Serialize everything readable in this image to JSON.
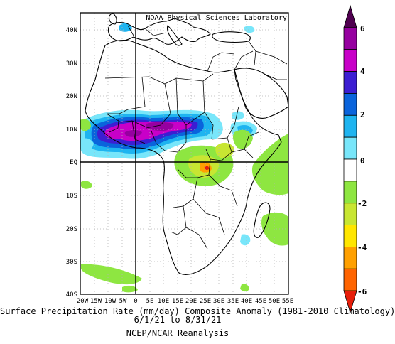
{
  "map": {
    "attribution": "NOAA Physical Sciences Laboratory",
    "lat_labels": [
      "40N",
      "30N",
      "20N",
      "10N",
      "EQ",
      "10S",
      "20S",
      "30S",
      "40S"
    ],
    "lon_labels": [
      "20W",
      "15W",
      "10W",
      "5W",
      "0",
      "5E",
      "10E",
      "15E",
      "20E",
      "25E",
      "30E",
      "35E",
      "40E",
      "45E",
      "50E",
      "55E"
    ],
    "extent": {
      "lon_min": -20,
      "lon_max": 55,
      "lat_min": -40,
      "lat_max": 45
    }
  },
  "colorbar": {
    "tick_labels": [
      "6",
      "4",
      "2",
      "0",
      "-2",
      "-4",
      "-6"
    ],
    "colors": [
      "#500050",
      "#9600a0",
      "#c800c8",
      "#3c1ed2",
      "#0a64dc",
      "#1eb4f0",
      "#78e6fa",
      "#ffffff",
      "#8ee641",
      "#c8e632",
      "#ffe600",
      "#ffa000",
      "#ff6400",
      "#e61e0a"
    ]
  },
  "captions": {
    "line1": "Surface Precipitation Rate (mm/day) Composite Anomaly (1981-2010 Climatology)",
    "line2": "6/1/21  to 8/31/21",
    "line3": "NCEP/NCAR Reanalysis"
  }
}
